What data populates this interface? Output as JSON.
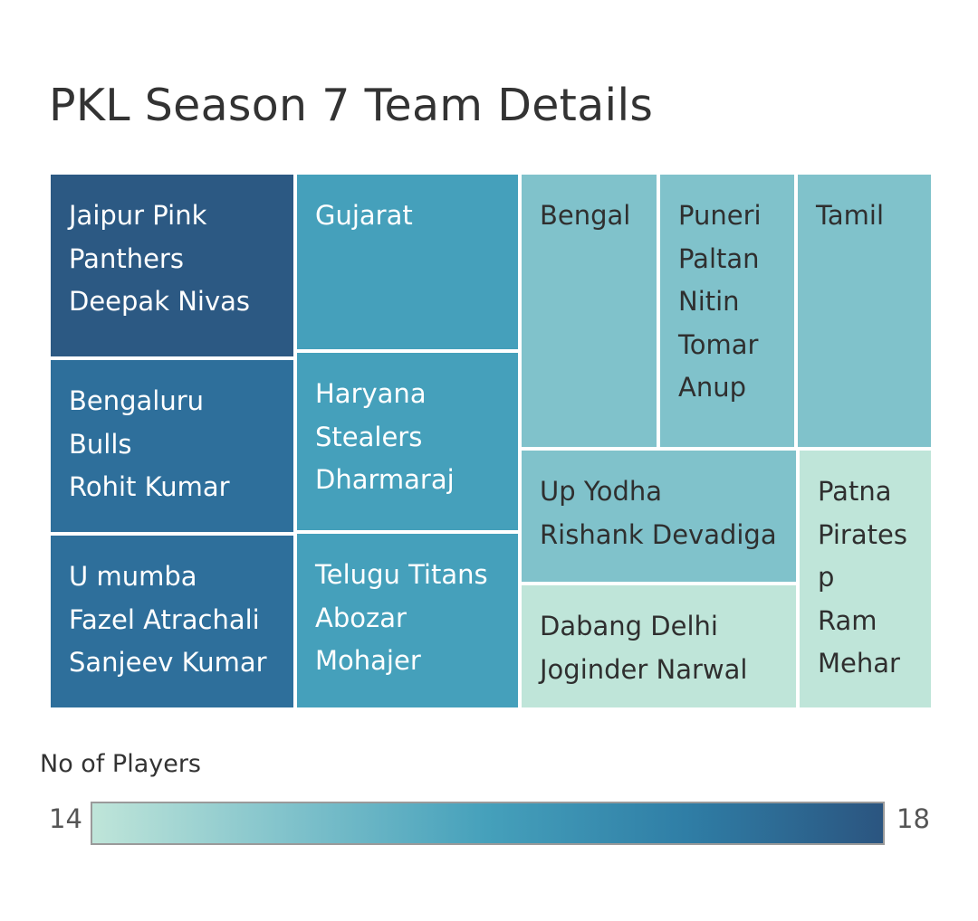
{
  "title": "PKL Season 7 Team Details",
  "chart_data": {
    "type": "treemap",
    "title": "PKL Season 7 Team Details",
    "measure": "No of Players",
    "color_range": [
      14,
      18
    ],
    "color_stops": [
      "#bfe5d9",
      "#80c2cb",
      "#45a0bb",
      "#2f7ea6",
      "#2b5580"
    ],
    "items": [
      {
        "label": "Jaipur Pink\nPanthers\nDeepak Nivas",
        "value": 18,
        "color": "#2c5983"
      },
      {
        "label": "Bengaluru\nBulls\nRohit Kumar",
        "value": 17,
        "color": "#2e6f9b"
      },
      {
        "label": "U mumba\nFazel Atrachali\nSanjeev Kumar",
        "value": 17,
        "color": "#2e6f9b"
      },
      {
        "label": "Gujarat",
        "value": 16,
        "color": "#45a0bb"
      },
      {
        "label": "Haryana\nStealers\nDharmaraj",
        "value": 16,
        "color": "#45a0bb"
      },
      {
        "label": "Telugu Titans\nAbozar\nMohajer",
        "value": 16,
        "color": "#45a0bb"
      },
      {
        "label": "Bengal",
        "value": 15,
        "color": "#80c2cb"
      },
      {
        "label": "Puneri\nPaltan\nNitin\nTomar\nAnup",
        "value": 15,
        "color": "#80c2cb"
      },
      {
        "label": "Tamil",
        "value": 15,
        "color": "#80c2cb"
      },
      {
        "label": "Up Yodha\nRishank Devadiga",
        "value": 15,
        "color": "#80c2cb"
      },
      {
        "label": "Dabang Delhi\nJoginder Narwal",
        "value": 14,
        "color": "#bfe5d9"
      },
      {
        "label": "Patna\nPirates\np\nRam\nMehar",
        "value": 14,
        "color": "#bfe5d9"
      }
    ]
  },
  "legend": {
    "title": "No of Players",
    "min_label": "14",
    "max_label": "18"
  }
}
